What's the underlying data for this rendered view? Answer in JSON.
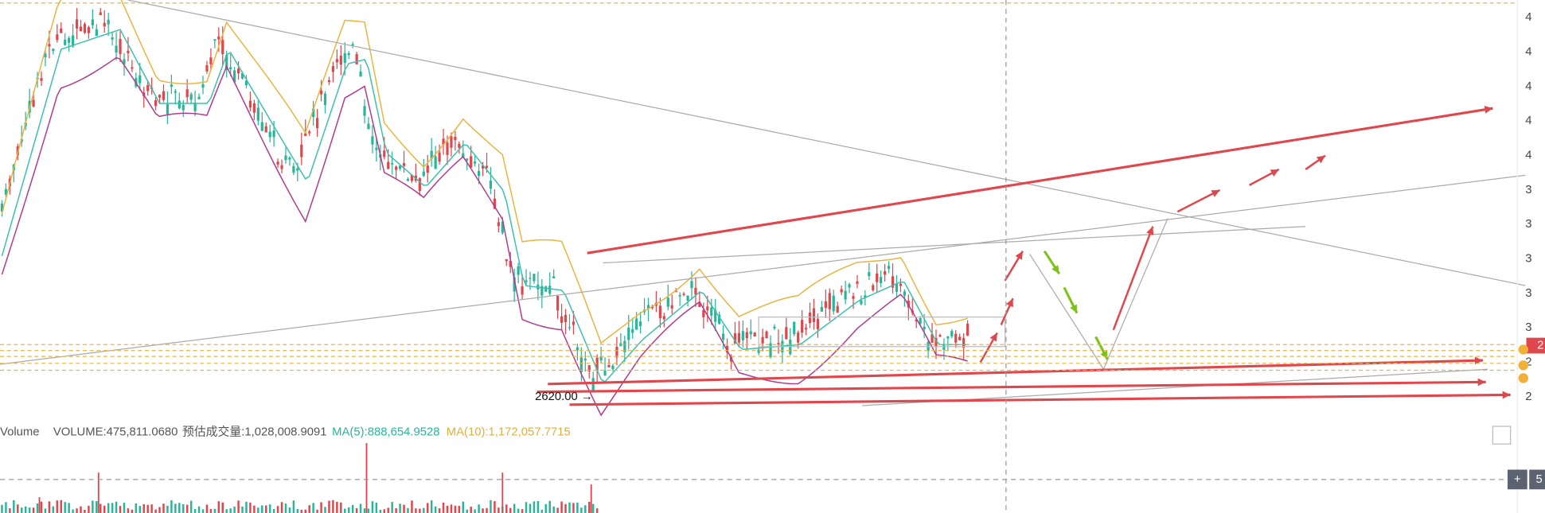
{
  "chart_panel": {
    "low_marker": "2620.00 →",
    "price_tag": "2",
    "axis_labels": [
      "4",
      "4",
      "4",
      "4",
      "4",
      "3",
      "3",
      "3",
      "3",
      "3",
      "2",
      "2"
    ]
  },
  "volume_panel": {
    "title": "Volume",
    "volume": "VOLUME:475,811.0680",
    "estimate": "预估成交量:1,028,008.9091",
    "ma5": "MA(5):888,654.9528",
    "ma10": "MA(10):1,172,057.7715"
  },
  "controls": {
    "plus": "+",
    "five": "5"
  }
}
